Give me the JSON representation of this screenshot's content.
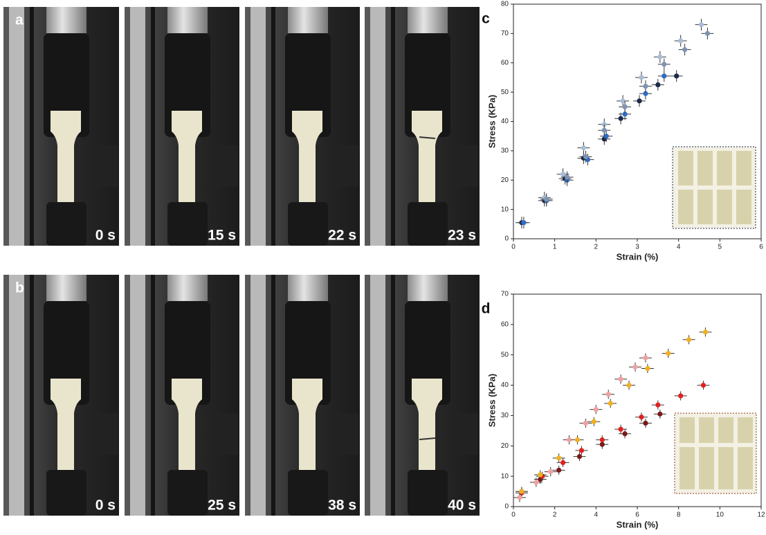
{
  "panels": [
    {
      "letter": "a",
      "times": [
        "0 s",
        "15 s",
        "22 s",
        "23 s"
      ]
    },
    {
      "letter": "b",
      "times": [
        "0 s",
        "25 s",
        "38 s",
        "40 s"
      ]
    }
  ],
  "chart_data": [
    {
      "type": "scatter",
      "letter": "c",
      "x_label": "Strain (%)",
      "y_label": "Stress (KPa)",
      "xlim": [
        0,
        6
      ],
      "ylim": [
        0,
        80
      ],
      "xticks": [
        0,
        1,
        2,
        3,
        4,
        5,
        6
      ],
      "yticks": [
        0,
        10,
        20,
        30,
        40,
        50,
        60,
        70,
        80
      ],
      "series": [
        {
          "color": "#1b2a4a",
          "x": [
            0.2,
            0.75,
            1.25,
            1.7,
            2.2,
            2.6,
            3.05,
            3.5,
            3.95
          ],
          "values": [
            5.5,
            13,
            20.5,
            27.5,
            34,
            41,
            47,
            52.5,
            55.5
          ],
          "xerr": 0.15,
          "yerr": 2
        },
        {
          "color": "#2f6bc4",
          "x": [
            0.25,
            0.8,
            1.3,
            1.8,
            2.25,
            2.7,
            3.2,
            3.65
          ],
          "values": [
            5.5,
            13,
            20,
            27,
            35,
            42.5,
            49.5,
            55.5
          ],
          "xerr": 0.15,
          "yerr": 2
        },
        {
          "color": "#a9bcd6",
          "x": [
            0.75,
            1.2,
            1.7,
            2.2,
            2.65,
            3.1,
            3.55,
            4.05,
            4.55
          ],
          "values": [
            14,
            22,
            31,
            39,
            47,
            55,
            62,
            67.5,
            73
          ],
          "xerr": 0.15,
          "yerr": 2
        },
        {
          "color": "#7f93b3",
          "x": [
            0.8,
            1.3,
            1.75,
            2.2,
            2.7,
            3.2,
            3.65,
            4.15,
            4.7
          ],
          "values": [
            13.5,
            21,
            28,
            37,
            45,
            52,
            59.5,
            64.5,
            70
          ],
          "xerr": 0.15,
          "yerr": 2
        }
      ]
    },
    {
      "type": "scatter",
      "letter": "d",
      "x_label": "Strain (%)",
      "y_label": "Stress (KPa)",
      "xlim": [
        0,
        12
      ],
      "ylim": [
        0,
        70
      ],
      "xticks": [
        0,
        2,
        4,
        6,
        8,
        10,
        12
      ],
      "yticks": [
        0,
        10,
        20,
        30,
        40,
        50,
        60,
        70
      ],
      "series": [
        {
          "color": "#7a1a1a",
          "x": [
            0.4,
            1.3,
            2.2,
            3.2,
            4.3,
            5.4,
            6.4,
            7.1
          ],
          "values": [
            5,
            9,
            12,
            16.5,
            20.5,
            24,
            27.5,
            30.5
          ],
          "xerr": 0.3,
          "yerr": 1.5
        },
        {
          "color": "#e02020",
          "x": [
            0.4,
            1.4,
            2.4,
            3.3,
            4.3,
            5.2,
            6.2,
            7,
            8.1,
            9.2
          ],
          "values": [
            4.5,
            10,
            14.5,
            18.5,
            22,
            25.5,
            29.5,
            33.5,
            36.5,
            40
          ],
          "xerr": 0.3,
          "yerr": 1.5
        },
        {
          "color": "#f0a0a0",
          "x": [
            0.3,
            1.1,
            1.8,
            2.7,
            3.5,
            4,
            4.6,
            5.2,
            5.9,
            6.4
          ],
          "values": [
            3,
            8,
            11.5,
            22,
            27.5,
            32,
            37,
            42,
            46,
            49
          ],
          "xerr": 0.3,
          "yerr": 1.5
        },
        {
          "color": "#f0b020",
          "x": [
            0.4,
            1.3,
            2.2,
            3.1,
            3.9,
            4.7,
            5.6,
            6.5,
            7.5,
            8.5,
            9.3
          ],
          "values": [
            5,
            10.5,
            16,
            22,
            28,
            34,
            40,
            45.5,
            50.5,
            55,
            57.5
          ],
          "xerr": 0.3,
          "yerr": 1.5
        }
      ]
    }
  ]
}
